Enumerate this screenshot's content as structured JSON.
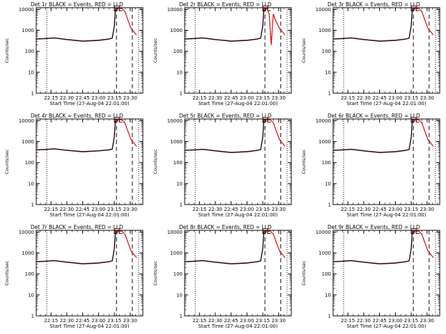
{
  "chart_data": [
    {
      "type": "line",
      "title": "Det 1r BLACK = Events, RED = LLD",
      "xlabel": "Start Time (27-Aug-04 22:01:00)",
      "ylabel": "Counts/sec",
      "x_ticks": [
        "22:15",
        "22:30",
        "22:45",
        "23:00",
        "23:15",
        "23:30"
      ],
      "y_ticks": [
        "1",
        "10",
        "100",
        "1000",
        "10000"
      ],
      "ylim": [
        1,
        12000
      ],
      "yscale": "log",
      "xlim": [
        "22:01",
        "23:42"
      ],
      "annotation": "SL",
      "vlines": [
        {
          "time": "22:11",
          "style": "dotted"
        },
        {
          "time": "23:17",
          "style": "dashed"
        },
        {
          "time": "23:32",
          "style": "dashed"
        },
        {
          "time": "23:38",
          "style": "dotted"
        }
      ],
      "series": [
        {
          "name": "Events",
          "color": "#000000",
          "x": [
            "22:01",
            "22:10",
            "22:18",
            "22:30",
            "22:45",
            "23:00",
            "23:10",
            "23:13",
            "23:15",
            "23:16"
          ],
          "values": [
            380,
            400,
            430,
            360,
            300,
            330,
            380,
            420,
            1600,
            10000
          ]
        },
        {
          "name": "LLD",
          "color": "#d40000",
          "x": [
            "22:01",
            "22:10",
            "22:18",
            "22:30",
            "22:45",
            "23:00",
            "23:10",
            "23:13",
            "23:15",
            "23:16",
            "23:22",
            "23:25",
            "23:28",
            "23:31",
            "23:34",
            "23:36"
          ],
          "values": [
            390,
            410,
            440,
            370,
            310,
            340,
            390,
            430,
            1700,
            11000,
            11000,
            8000,
            3000,
            1200,
            800,
            600
          ]
        }
      ]
    },
    {
      "type": "line",
      "title": "Det 2r BLACK = Events, RED = LLD",
      "xlabel": "Start Time (27-Aug-04 22:01:00)",
      "ylabel": "Counts/sec",
      "x_ticks": [
        "22:15",
        "22:30",
        "22:45",
        "23:00",
        "23:15",
        "23:30"
      ],
      "y_ticks": [
        "1",
        "10",
        "100",
        "1000",
        "10000"
      ],
      "ylim": [
        1,
        12000
      ],
      "yscale": "log",
      "xlim": [
        "22:01",
        "23:42"
      ],
      "annotation": "SL",
      "vlines": [
        {
          "time": "22:11",
          "style": "dotted"
        },
        {
          "time": "23:17",
          "style": "dashed"
        },
        {
          "time": "23:32",
          "style": "dashed"
        },
        {
          "time": "23:38",
          "style": "dotted"
        }
      ],
      "series": [
        {
          "name": "Events",
          "color": "#000000",
          "x": [
            "22:01",
            "22:10",
            "22:18",
            "22:30",
            "22:45",
            "23:00",
            "23:10",
            "23:13",
            "23:15",
            "23:16"
          ],
          "values": [
            380,
            400,
            430,
            360,
            300,
            330,
            380,
            420,
            1600,
            10000
          ]
        },
        {
          "name": "LLD",
          "color": "#d40000",
          "x": [
            "22:01",
            "22:10",
            "22:18",
            "22:30",
            "22:45",
            "23:00",
            "23:10",
            "23:13",
            "23:15",
            "23:16",
            "23:19",
            "23:21",
            "23:23",
            "23:25",
            "23:27",
            "23:31",
            "23:34",
            "23:36"
          ],
          "values": [
            390,
            410,
            440,
            370,
            310,
            340,
            390,
            430,
            1700,
            11000,
            11000,
            6000,
            200,
            6000,
            3000,
            1200,
            800,
            600
          ]
        }
      ]
    },
    {
      "type": "line",
      "title": "Det 3r BLACK = Events, RED = LLD",
      "xlabel": "Start Time (27-Aug-04 22:01:00)",
      "ylabel": "Counts/sec",
      "x_ticks": [
        "22:15",
        "22:30",
        "22:45",
        "23:00",
        "23:15",
        "23:30"
      ],
      "y_ticks": [
        "1",
        "10",
        "100",
        "1000",
        "10000"
      ],
      "ylim": [
        1,
        12000
      ],
      "yscale": "log",
      "xlim": [
        "22:01",
        "23:42"
      ],
      "annotation": "SL",
      "vlines": [
        {
          "time": "22:11",
          "style": "dotted"
        },
        {
          "time": "23:17",
          "style": "dashed"
        },
        {
          "time": "23:32",
          "style": "dashed"
        },
        {
          "time": "23:38",
          "style": "dotted"
        }
      ],
      "series": [
        {
          "name": "Events",
          "color": "#000000",
          "x": [
            "22:01",
            "22:10",
            "22:18",
            "22:30",
            "22:45",
            "23:00",
            "23:10",
            "23:13",
            "23:15",
            "23:16"
          ],
          "values": [
            380,
            400,
            430,
            360,
            300,
            330,
            380,
            420,
            1600,
            10000
          ]
        },
        {
          "name": "LLD",
          "color": "#d40000",
          "x": [
            "22:01",
            "22:10",
            "22:18",
            "22:30",
            "22:45",
            "23:00",
            "23:10",
            "23:13",
            "23:15",
            "23:16",
            "23:22",
            "23:25",
            "23:28",
            "23:31",
            "23:34",
            "23:36"
          ],
          "values": [
            390,
            410,
            440,
            370,
            310,
            340,
            390,
            430,
            1700,
            11000,
            11000,
            8000,
            3000,
            1200,
            800,
            600
          ]
        }
      ]
    },
    {
      "type": "line",
      "title": "Det 4r BLACK = Events, RED = LLD",
      "xlabel": "Start Time (27-Aug-04 22:01:00)",
      "ylabel": "Counts/sec",
      "x_ticks": [
        "22:15",
        "22:30",
        "22:45",
        "23:00",
        "23:15",
        "23:30"
      ],
      "y_ticks": [
        "1",
        "10",
        "100",
        "1000",
        "10000"
      ],
      "ylim": [
        1,
        12000
      ],
      "yscale": "log",
      "xlim": [
        "22:01",
        "23:42"
      ],
      "annotation": "SL",
      "vlines": [
        {
          "time": "22:11",
          "style": "dotted"
        },
        {
          "time": "23:17",
          "style": "dashed"
        },
        {
          "time": "23:32",
          "style": "dashed"
        },
        {
          "time": "23:38",
          "style": "dotted"
        }
      ],
      "series": [
        {
          "name": "Events",
          "color": "#000000",
          "x": [
            "22:01",
            "22:10",
            "22:18",
            "22:30",
            "22:45",
            "23:00",
            "23:10",
            "23:13",
            "23:15",
            "23:16"
          ],
          "values": [
            400,
            420,
            450,
            380,
            330,
            360,
            400,
            440,
            1700,
            10000
          ]
        },
        {
          "name": "LLD",
          "color": "#d40000",
          "x": [
            "22:01",
            "22:10",
            "22:18",
            "22:30",
            "22:45",
            "23:00",
            "23:10",
            "23:13",
            "23:15",
            "23:16",
            "23:22",
            "23:25",
            "23:28",
            "23:31",
            "23:34",
            "23:36"
          ],
          "values": [
            410,
            430,
            460,
            390,
            340,
            370,
            410,
            450,
            1800,
            11000,
            11000,
            8000,
            3000,
            1200,
            800,
            600
          ]
        }
      ]
    },
    {
      "type": "line",
      "title": "Det 5r BLACK = Events, RED = LLD",
      "xlabel": "Start Time (27-Aug-04 22:01:00)",
      "ylabel": "Counts/sec",
      "x_ticks": [
        "22:15",
        "22:30",
        "22:45",
        "23:00",
        "23:15",
        "23:30"
      ],
      "y_ticks": [
        "1",
        "10",
        "100",
        "1000",
        "10000"
      ],
      "ylim": [
        1,
        12000
      ],
      "yscale": "log",
      "xlim": [
        "22:01",
        "23:42"
      ],
      "annotation": "SL",
      "vlines": [
        {
          "time": "22:11",
          "style": "dotted"
        },
        {
          "time": "23:17",
          "style": "dashed"
        },
        {
          "time": "23:32",
          "style": "dashed"
        },
        {
          "time": "23:38",
          "style": "dotted"
        }
      ],
      "series": [
        {
          "name": "Events",
          "color": "#000000",
          "x": [
            "22:01",
            "22:10",
            "22:18",
            "22:30",
            "22:45",
            "23:00",
            "23:10",
            "23:13",
            "23:15",
            "23:16"
          ],
          "values": [
            380,
            400,
            430,
            360,
            300,
            330,
            380,
            420,
            1600,
            10000
          ]
        },
        {
          "name": "LLD",
          "color": "#d40000",
          "x": [
            "22:01",
            "22:10",
            "22:18",
            "22:30",
            "22:45",
            "23:00",
            "23:10",
            "23:13",
            "23:15",
            "23:16",
            "23:22",
            "23:25",
            "23:28",
            "23:31",
            "23:34",
            "23:36"
          ],
          "values": [
            390,
            410,
            440,
            370,
            310,
            340,
            390,
            430,
            1700,
            11000,
            11000,
            8000,
            3000,
            1200,
            800,
            600
          ]
        }
      ]
    },
    {
      "type": "line",
      "title": "Det 6r BLACK = Events, RED = LLD",
      "xlabel": "Start Time (27-Aug-04 22:01:00)",
      "ylabel": "Counts/sec",
      "x_ticks": [
        "22:15",
        "22:30",
        "22:45",
        "23:00",
        "23:15",
        "23:30"
      ],
      "y_ticks": [
        "1",
        "10",
        "100",
        "1000",
        "10000"
      ],
      "ylim": [
        1,
        12000
      ],
      "yscale": "log",
      "xlim": [
        "22:01",
        "23:42"
      ],
      "annotation": "SL",
      "vlines": [
        {
          "time": "22:11",
          "style": "dotted"
        },
        {
          "time": "23:17",
          "style": "dashed"
        },
        {
          "time": "23:32",
          "style": "dashed"
        },
        {
          "time": "23:38",
          "style": "dotted"
        }
      ],
      "series": [
        {
          "name": "Events",
          "color": "#000000",
          "x": [
            "22:01",
            "22:10",
            "22:18",
            "22:30",
            "22:45",
            "23:00",
            "23:10",
            "23:13",
            "23:15",
            "23:16"
          ],
          "values": [
            380,
            400,
            430,
            360,
            300,
            330,
            380,
            420,
            1600,
            10000
          ]
        },
        {
          "name": "LLD",
          "color": "#d40000",
          "x": [
            "22:01",
            "22:10",
            "22:18",
            "22:30",
            "22:45",
            "23:00",
            "23:10",
            "23:13",
            "23:15",
            "23:16",
            "23:22",
            "23:25",
            "23:28",
            "23:31",
            "23:34",
            "23:36"
          ],
          "values": [
            390,
            410,
            440,
            370,
            310,
            340,
            390,
            430,
            1700,
            11000,
            11000,
            8000,
            3000,
            1200,
            800,
            600
          ]
        }
      ]
    },
    {
      "type": "line",
      "title": "Det 7r BLACK = Events, RED = LLD",
      "xlabel": "Start Time (27-Aug-04 22:01:00)",
      "ylabel": "Counts/sec",
      "x_ticks": [
        "22:15",
        "22:30",
        "22:45",
        "23:00",
        "23:15",
        "23:30"
      ],
      "y_ticks": [
        "1",
        "10",
        "100",
        "1000",
        "10000"
      ],
      "ylim": [
        1,
        12000
      ],
      "yscale": "log",
      "xlim": [
        "22:01",
        "23:42"
      ],
      "annotation": "SL",
      "vlines": [
        {
          "time": "22:11",
          "style": "dotted"
        },
        {
          "time": "23:17",
          "style": "dashed"
        },
        {
          "time": "23:32",
          "style": "dashed"
        },
        {
          "time": "23:38",
          "style": "dotted"
        }
      ],
      "series": [
        {
          "name": "Events",
          "color": "#000000",
          "x": [
            "22:01",
            "22:10",
            "22:18",
            "22:30",
            "22:45",
            "23:00",
            "23:10",
            "23:13",
            "23:15",
            "23:16"
          ],
          "values": [
            380,
            400,
            430,
            360,
            300,
            330,
            380,
            420,
            1600,
            10000
          ]
        },
        {
          "name": "LLD",
          "color": "#d40000",
          "x": [
            "22:01",
            "22:10",
            "22:18",
            "22:30",
            "22:45",
            "23:00",
            "23:10",
            "23:13",
            "23:15",
            "23:16",
            "23:22",
            "23:25",
            "23:28",
            "23:31",
            "23:34",
            "23:36"
          ],
          "values": [
            390,
            410,
            440,
            370,
            310,
            340,
            390,
            430,
            1700,
            11000,
            11000,
            8000,
            3000,
            1200,
            800,
            600
          ]
        }
      ]
    },
    {
      "type": "line",
      "title": "Det 8r BLACK = Events, RED = LLD",
      "xlabel": "Start Time (27-Aug-04 22:01:00)",
      "ylabel": "Counts/sec",
      "x_ticks": [
        "22:15",
        "22:30",
        "22:45",
        "23:00",
        "23:15",
        "23:30"
      ],
      "y_ticks": [
        "1",
        "10",
        "100",
        "1000",
        "10000"
      ],
      "ylim": [
        1,
        12000
      ],
      "yscale": "log",
      "xlim": [
        "22:01",
        "23:42"
      ],
      "annotation": "SL",
      "vlines": [
        {
          "time": "22:11",
          "style": "dotted"
        },
        {
          "time": "23:17",
          "style": "dashed"
        },
        {
          "time": "23:32",
          "style": "dashed"
        },
        {
          "time": "23:38",
          "style": "dotted"
        }
      ],
      "series": [
        {
          "name": "Events",
          "color": "#000000",
          "x": [
            "22:01",
            "22:10",
            "22:18",
            "22:30",
            "22:45",
            "23:00",
            "23:10",
            "23:13",
            "23:15",
            "23:16"
          ],
          "values": [
            380,
            400,
            430,
            360,
            300,
            330,
            380,
            420,
            1600,
            10000
          ]
        },
        {
          "name": "LLD",
          "color": "#d40000",
          "x": [
            "22:01",
            "22:10",
            "22:18",
            "22:30",
            "22:45",
            "23:00",
            "23:10",
            "23:13",
            "23:15",
            "23:16",
            "23:22",
            "23:25",
            "23:28",
            "23:31",
            "23:34",
            "23:36"
          ],
          "values": [
            390,
            410,
            440,
            370,
            310,
            340,
            390,
            430,
            1700,
            11000,
            11000,
            8000,
            3000,
            1200,
            800,
            600
          ]
        }
      ]
    },
    {
      "type": "line",
      "title": "Det 9r BLACK = Events, RED = LLD",
      "xlabel": "Start Time (27-Aug-04 22:01:00)",
      "ylabel": "Counts/sec",
      "x_ticks": [
        "22:15",
        "22:30",
        "22:45",
        "23:00",
        "23:15",
        "23:30"
      ],
      "y_ticks": [
        "1",
        "10",
        "100",
        "1000",
        "10000"
      ],
      "ylim": [
        1,
        12000
      ],
      "yscale": "log",
      "xlim": [
        "22:01",
        "23:42"
      ],
      "annotation": "SL",
      "vlines": [
        {
          "time": "22:11",
          "style": "dotted"
        },
        {
          "time": "23:17",
          "style": "dashed"
        },
        {
          "time": "23:32",
          "style": "dashed"
        },
        {
          "time": "23:38",
          "style": "dotted"
        }
      ],
      "series": [
        {
          "name": "Events",
          "color": "#000000",
          "x": [
            "22:01",
            "22:10",
            "22:18",
            "22:30",
            "22:45",
            "23:00",
            "23:10",
            "23:13",
            "23:15",
            "23:16"
          ],
          "values": [
            380,
            400,
            430,
            360,
            300,
            330,
            380,
            420,
            1600,
            10000
          ]
        },
        {
          "name": "LLD",
          "color": "#d40000",
          "x": [
            "22:01",
            "22:10",
            "22:18",
            "22:30",
            "22:45",
            "23:00",
            "23:10",
            "23:13",
            "23:15",
            "23:16",
            "23:22",
            "23:25",
            "23:28",
            "23:31",
            "23:34",
            "23:36"
          ],
          "values": [
            390,
            410,
            440,
            370,
            310,
            340,
            390,
            430,
            1700,
            11000,
            11000,
            8000,
            3000,
            1200,
            800,
            600
          ]
        }
      ]
    }
  ]
}
